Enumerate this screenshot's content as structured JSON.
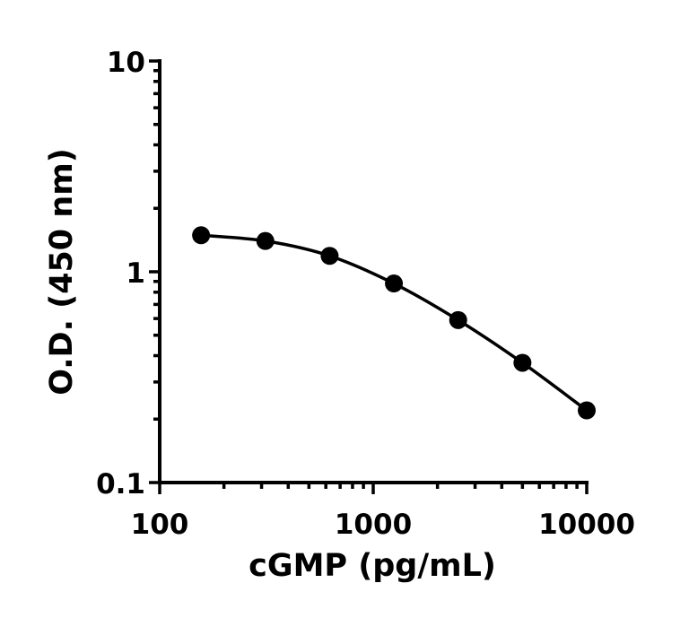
{
  "chart_data": {
    "type": "line",
    "xlabel": "cGMP (pg/mL)",
    "ylabel": "O.D. (450 nm)",
    "xscale": "log",
    "yscale": "log",
    "xlim": [
      100,
      10000
    ],
    "ylim": [
      0.1,
      10
    ],
    "xticks": [
      "100",
      "1000",
      "10000"
    ],
    "yticks": [
      "0.1",
      "1",
      "10"
    ],
    "grid": false,
    "series": [
      {
        "x": [
          156.25,
          312.5,
          625,
          1250,
          2500,
          5000,
          10000
        ],
        "y": [
          1.49,
          1.4,
          1.19,
          0.88,
          0.59,
          0.37,
          0.22
        ],
        "marker": "circle",
        "color": "#000000",
        "fit": "smooth curve"
      }
    ]
  }
}
